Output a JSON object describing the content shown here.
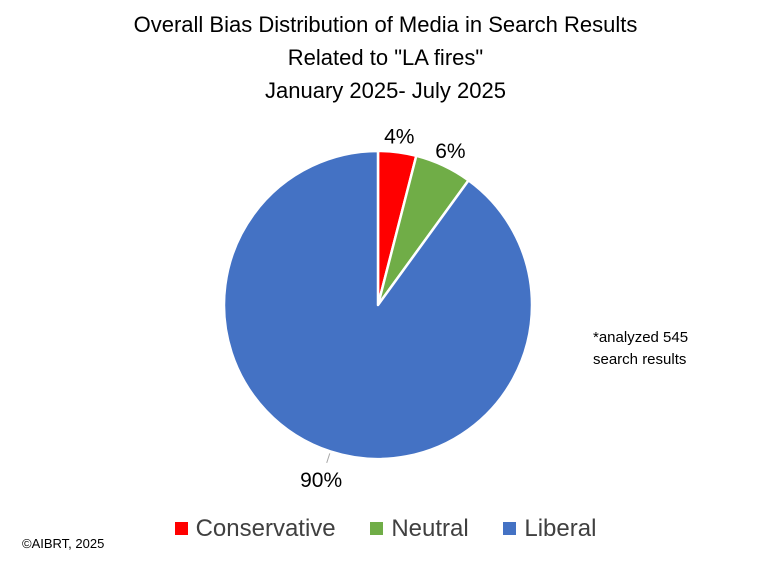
{
  "chart_data": {
    "type": "pie",
    "title": [
      "Overall Bias Distribution of Media in Search Results",
      "Related to \"LA fires\"",
      "January 2025- July 2025"
    ],
    "slices": [
      {
        "label": "Conservative",
        "value": 4,
        "display": "4%",
        "color": "#ff0000"
      },
      {
        "label": "Neutral",
        "value": 6,
        "display": "6%",
        "color": "#70ad47"
      },
      {
        "label": "Liberal",
        "value": 90,
        "display": "90%",
        "color": "#4472c4"
      }
    ],
    "start_angle": "12 o'clock",
    "direction": "clockwise",
    "legend_position": "bottom",
    "annotation": [
      "*analyzed 545",
      "search results"
    ]
  },
  "footer": {
    "copyright": "©AIBRT, 2025"
  }
}
